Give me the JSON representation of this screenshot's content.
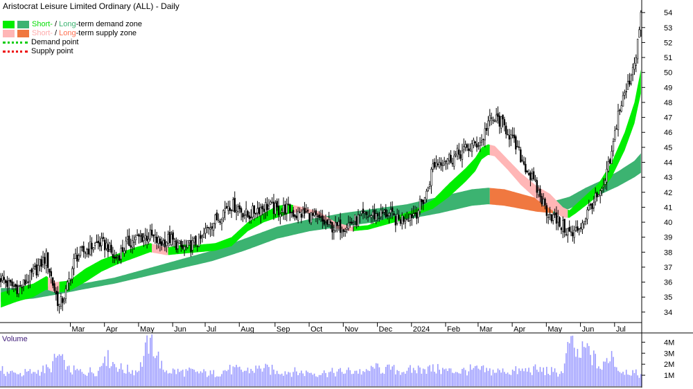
{
  "title": "Aristocrat Leisure Limited Ordinary (ALL) - Daily",
  "legend": {
    "demand_short": "Short-",
    "demand_sep": " / ",
    "demand_long": "Long",
    "demand_rest": "-term demand zone",
    "supply_short": "Short-",
    "supply_sep": " / ",
    "supply_long": "Long",
    "supply_rest": "-term supply zone",
    "demand_point": "Demand point",
    "supply_point": "Supply point"
  },
  "volume_label": "Volume",
  "colors": {
    "short_demand": "#00ee00",
    "long_demand": "#3cb371",
    "short_supply": "#ffb6b6",
    "long_supply": "#f07840",
    "demand_text_short": "#00dd00",
    "demand_text_long": "#3cb371",
    "supply_text_short": "#ffaaaa",
    "supply_text_long": "#ff7050",
    "demand_point": "#00cc00",
    "supply_point": "#ee0000",
    "volume": "#9a9aff"
  },
  "chart_data": {
    "type": "line",
    "price_axis": {
      "ticks": [
        34,
        35,
        36,
        37,
        38,
        39,
        40,
        41,
        42,
        43,
        44,
        45,
        46,
        47,
        48,
        49,
        50,
        51,
        52,
        53,
        54
      ],
      "range": [
        33.3,
        54.7
      ]
    },
    "volume_axis": {
      "ticks": [
        "1M",
        "2M",
        "3M",
        "4M"
      ],
      "values": [
        1,
        2,
        3,
        4
      ],
      "range": [
        0,
        4.4
      ]
    },
    "months": [
      "Mar",
      "Apr",
      "May",
      "Jun",
      "Jul",
      "Aug",
      "Sep",
      "Oct",
      "Nov",
      "Dec",
      "2024",
      "Feb",
      "Mar",
      "Apr",
      "May",
      "Jun",
      "Jul"
    ],
    "month_starts": [
      43,
      64,
      85,
      106,
      126,
      147,
      169,
      190,
      211,
      232,
      253,
      274,
      294,
      315,
      336,
      357,
      378
    ],
    "total_days": 395,
    "price": {
      "days": [
        0,
        5,
        12,
        20,
        28,
        32,
        36,
        40,
        46,
        52,
        56,
        60,
        66,
        70,
        78,
        86,
        92,
        98,
        104,
        112,
        118,
        124,
        128,
        134,
        140,
        146,
        152,
        158,
        164,
        170,
        176,
        182,
        188,
        194,
        200,
        206,
        212,
        218,
        224,
        232,
        238,
        244,
        250,
        256,
        262,
        266,
        272,
        278,
        284,
        290,
        296,
        300,
        306,
        312,
        318,
        324,
        330,
        336,
        341,
        346,
        352,
        358,
        364,
        370,
        376,
        380,
        386,
        391,
        394
      ],
      "close": [
        36.3,
        35.8,
        35.6,
        36.6,
        37.7,
        35.9,
        34.4,
        35.3,
        37.7,
        38.1,
        38.4,
        38.6,
        38.4,
        37.5,
        38.6,
        39.0,
        39.1,
        38.6,
        38.9,
        38.2,
        38.5,
        38.9,
        39.8,
        40.3,
        41.2,
        41.0,
        40.4,
        40.9,
        41.1,
        40.8,
        40.9,
        40.5,
        40.6,
        40.2,
        39.9,
        39.6,
        39.8,
        40.1,
        40.4,
        40.5,
        40.6,
        40.1,
        40.4,
        40.7,
        41.9,
        43.8,
        44.2,
        44.3,
        44.7,
        45.1,
        45.4,
        46.7,
        46.9,
        46.1,
        44.8,
        43.5,
        42.2,
        40.8,
        40.2,
        39.7,
        39.1,
        40.0,
        41.3,
        41.9,
        44.5,
        47.3,
        49.1,
        51.3,
        53.6
      ]
    },
    "short_term_zone": {
      "days": [
        0,
        10,
        20,
        28,
        34,
        42,
        52,
        62,
        72,
        82,
        92,
        102,
        112,
        122,
        132,
        142,
        152,
        162,
        170,
        178,
        186,
        196,
        206,
        216,
        226,
        236,
        246,
        256,
        266,
        276,
        286,
        292,
        296,
        300,
        304,
        312,
        320,
        330,
        338,
        346,
        350,
        354,
        360,
        368,
        376,
        384,
        390,
        394
      ],
      "upper": [
        35.3,
        35.6,
        35.9,
        36.4,
        36.0,
        36.1,
        36.9,
        37.5,
        37.9,
        38.3,
        38.6,
        38.3,
        38.5,
        38.5,
        38.6,
        39.0,
        40.0,
        40.6,
        41.1,
        41.2,
        41.0,
        40.7,
        40.0,
        39.7,
        39.8,
        40.2,
        40.5,
        40.9,
        41.5,
        42.6,
        43.6,
        44.3,
        45.0,
        45.2,
        45.1,
        44.2,
        43.3,
        42.4,
        41.9,
        41.0,
        40.8,
        41.2,
        41.8,
        42.6,
        44.0,
        46.0,
        48.0,
        50.2
      ],
      "lower": [
        34.3,
        34.7,
        35.0,
        35.5,
        35.3,
        35.4,
        36.0,
        36.7,
        37.2,
        37.6,
        38.0,
        37.8,
        37.9,
        38.0,
        38.1,
        38.4,
        39.4,
        40.0,
        40.3,
        40.6,
        40.7,
        40.4,
        39.6,
        39.4,
        39.5,
        39.8,
        40.1,
        40.5,
        40.9,
        41.7,
        42.7,
        43.4,
        44.2,
        44.5,
        44.4,
        43.5,
        42.5,
        41.5,
        40.9,
        40.3,
        40.3,
        40.6,
        41.1,
        41.8,
        43.0,
        44.8,
        46.6,
        48.6
      ]
    },
    "long_term_zone": {
      "days": [
        0,
        20,
        36,
        50,
        70,
        90,
        110,
        130,
        150,
        170,
        190,
        210,
        230,
        250,
        270,
        290,
        300,
        310,
        320,
        330,
        340,
        350,
        360,
        370,
        380,
        390,
        394
      ],
      "upper": [
        35.6,
        35.6,
        35.8,
        35.9,
        36.3,
        36.9,
        37.5,
        38.1,
        38.9,
        39.7,
        40.2,
        40.6,
        40.9,
        41.2,
        41.7,
        42.2,
        42.3,
        42.2,
        41.9,
        41.6,
        41.4,
        41.7,
        42.3,
        42.8,
        43.4,
        44.1,
        44.6
      ],
      "lower": [
        34.7,
        34.9,
        35.2,
        35.5,
        35.9,
        36.4,
        36.9,
        37.4,
        38.1,
        38.9,
        39.4,
        39.7,
        40.0,
        40.2,
        40.6,
        41.1,
        41.2,
        41.1,
        40.9,
        40.7,
        40.6,
        40.9,
        41.4,
        41.9,
        42.4,
        43.0,
        43.3
      ]
    },
    "volume": {
      "days": [
        0,
        10,
        20,
        30,
        36,
        40,
        50,
        60,
        64,
        75,
        85,
        92,
        100,
        110,
        120,
        130,
        140,
        150,
        160,
        170,
        180,
        190,
        200,
        210,
        218,
        224,
        230,
        240,
        250,
        260,
        270,
        280,
        290,
        300,
        310,
        320,
        330,
        340,
        346,
        350,
        356,
        360,
        370,
        376,
        380,
        385,
        390,
        394
      ],
      "values": [
        1.4,
        1.1,
        1.3,
        1.6,
        2.9,
        1.5,
        1.3,
        1.4,
        2.7,
        1.5,
        1.4,
        4.4,
        1.5,
        1.3,
        1.3,
        1.1,
        1.5,
        1.4,
        1.6,
        1.4,
        1.3,
        1.2,
        1.2,
        1.3,
        1.4,
        1.3,
        1.6,
        1.5,
        1.4,
        1.6,
        1.5,
        1.3,
        1.5,
        1.4,
        1.3,
        1.4,
        1.5,
        1.3,
        1.2,
        3.9,
        2.6,
        3.5,
        1.5,
        3.2,
        1.4,
        1.5,
        1.2,
        1.1
      ]
    }
  }
}
